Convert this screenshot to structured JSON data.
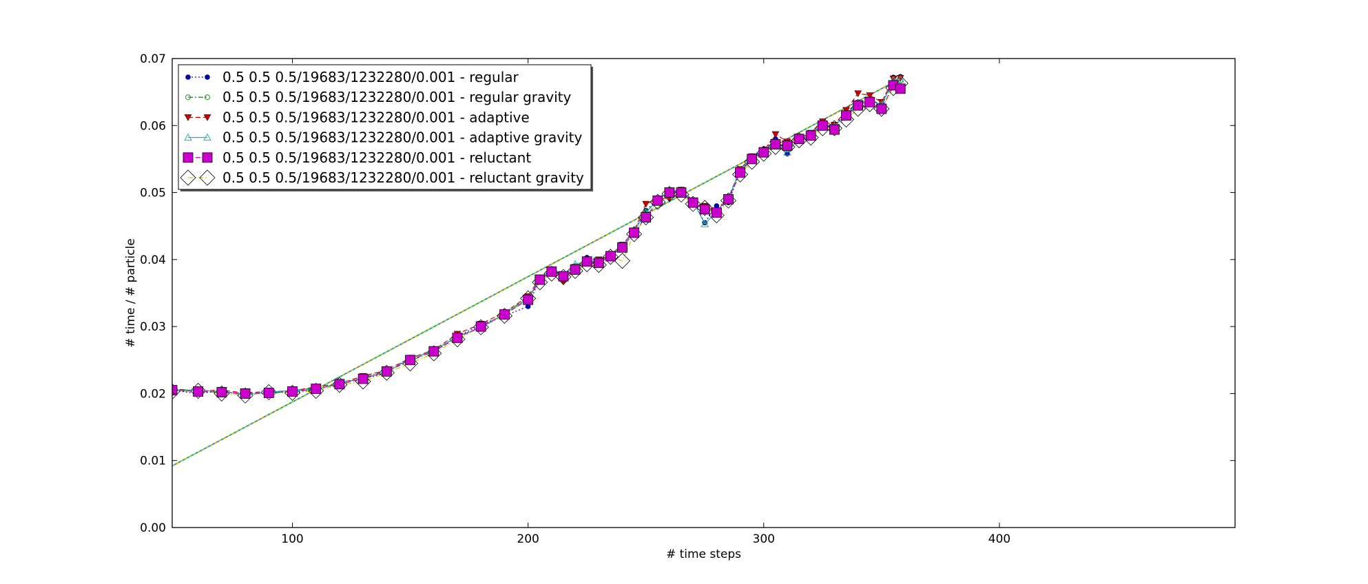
{
  "chart_data": {
    "type": "line",
    "title": "",
    "xlabel": "# time steps",
    "ylabel": "# time / # particle",
    "xlim": [
      49,
      500
    ],
    "ylim": [
      0.0,
      0.07
    ],
    "x_ticks": [
      100,
      200,
      300,
      400
    ],
    "x_tick_labels": [
      "100",
      "200",
      "300",
      "400"
    ],
    "y_ticks": [
      0.0,
      0.01,
      0.02,
      0.03,
      0.04,
      0.05,
      0.06,
      0.07
    ],
    "y_tick_labels": [
      "0.00",
      "0.01",
      "0.02",
      "0.03",
      "0.04",
      "0.05",
      "0.06",
      "0.07"
    ],
    "grid": false,
    "legend_position": "top-left",
    "base_curve": {
      "x": [
        49,
        60,
        70,
        80,
        90,
        100,
        110,
        120,
        130,
        140,
        150,
        160,
        170,
        180,
        190,
        200,
        205,
        210,
        215,
        220,
        225,
        230,
        235,
        240,
        245,
        250,
        255,
        260,
        265,
        270,
        275,
        280,
        285,
        290,
        295,
        300,
        305,
        310,
        315,
        320,
        325,
        330,
        335,
        340,
        345,
        350,
        355,
        358
      ],
      "y": [
        0.0205,
        0.0203,
        0.0202,
        0.02,
        0.0201,
        0.0203,
        0.0207,
        0.0214,
        0.0222,
        0.0233,
        0.025,
        0.0263,
        0.0283,
        0.03,
        0.0318,
        0.034,
        0.037,
        0.0382,
        0.0375,
        0.0385,
        0.0397,
        0.0395,
        0.0405,
        0.0418,
        0.044,
        0.0468,
        0.0488,
        0.05,
        0.05,
        0.0485,
        0.0475,
        0.047,
        0.049,
        0.053,
        0.055,
        0.056,
        0.0572,
        0.057,
        0.058,
        0.0585,
        0.06,
        0.0598,
        0.0615,
        0.063,
        0.0635,
        0.063,
        0.066,
        0.0665
      ]
    },
    "series": [
      {
        "name": "0.5 0.5 0.5/19683/1232280/0.001 - regular",
        "color": "#0000cc",
        "marker": "circle",
        "line_style": "dotted",
        "offsets": [
          0,
          -0.0003,
          0.0002,
          -0.0002,
          0.0001,
          0,
          -0.0002,
          0.0003,
          0,
          -0.0002,
          0.0004,
          -0.0001,
          0.0002,
          0.0003,
          -0.0002,
          -0.001,
          0.0002,
          0.0004,
          0,
          -0.0003,
          0.0006,
          0.0002,
          -0.0002,
          0.0003,
          0.0004,
          0.0005,
          0.0002,
          0.0002,
          0.0003,
          0.0002,
          -0.002,
          0.001,
          -0.0005,
          0.0003,
          0.0002,
          0.0005,
          0.0008,
          -0.0012,
          0.0002,
          0.0002,
          -0.0002,
          0.0003,
          0.0002,
          0.0005,
          0.0003,
          0.0002,
          0.0012,
          0.0008
        ]
      },
      {
        "name": "0.5 0.5 0.5/19683/1232280/0.001 - regular gravity",
        "color": "#228b22",
        "marker": "open-circle",
        "line_style": "dashdot",
        "offsets": [
          0.0001,
          0.0002,
          -0.0001,
          0.0001,
          -0.0002,
          0.0002,
          0.0001,
          -0.0001,
          0.0002,
          0.0001,
          -0.0002,
          0.0001,
          0.0003,
          -0.0002,
          0.0002,
          0.0003,
          -0.0002,
          0.0001,
          0.0002,
          0.0004,
          -0.0001,
          0.0002,
          0.0001,
          0.0003,
          0.0002,
          0.0003,
          -0.0001,
          0.0002,
          0.0001,
          0.0003,
          0.0002,
          0.0001,
          0.0003,
          0.0002,
          0.0001,
          0.0002,
          0.0003,
          0.0004,
          0.0002,
          0.0001,
          0.0003,
          0.0002,
          0.0001,
          0.0004,
          0.0002,
          0.0001,
          0.0004,
          0.0002
        ]
      },
      {
        "name": "0.5 0.5 0.5/19683/1232280/0.001 - adaptive",
        "color": "#cc0000",
        "marker": "triangle-down",
        "line_style": "dashed",
        "offsets": [
          0.0002,
          0.0001,
          0.0003,
          0.0001,
          0.0002,
          0.0001,
          0.0003,
          0.0001,
          0.0004,
          0.0002,
          0.0003,
          0.0002,
          0.0006,
          0.0004,
          0.0003,
          0.0005,
          0.0003,
          0.0002,
          -0.0008,
          0.0004,
          0.0003,
          0.0005,
          0.0002,
          0.0004,
          0.0003,
          0.0015,
          0.0002,
          -0.0008,
          0.0004,
          0.0003,
          0.0005,
          0.0003,
          0.0002,
          0.0005,
          0.0004,
          0.0002,
          0.0015,
          0.0006,
          0.0002,
          0.0004,
          0.0006,
          0.0003,
          0.0008,
          0.0018,
          0.001,
          0.0005,
          0.001,
          0.0006
        ]
      },
      {
        "name": "0.5 0.5 0.5/19683/1232280/0.001 - adaptive gravity",
        "color": "#20b2aa",
        "marker": "open-triangle",
        "line_style": "solid",
        "offsets": [
          -0.0001,
          0.0002,
          0.0001,
          -0.0002,
          0.0001,
          0.0002,
          -0.0001,
          0.0002,
          0.0001,
          -0.0001,
          0.0002,
          0.0001,
          0.0002,
          -0.0002,
          0.0001,
          0.0002,
          0.0001,
          0.0003,
          -0.0002,
          0.0008,
          0.0001,
          0.0002,
          0.0001,
          0.0002,
          0.0003,
          0.0002,
          0.0001,
          0.0002,
          0.0001,
          0.0002,
          -0.0022,
          0.0002,
          0.0001,
          0.0004,
          0.0002,
          0.0001,
          0.0003,
          -0.001,
          0.0001,
          0.0003,
          0.0002,
          0.0001,
          0.0002,
          0.0003,
          0.0002,
          0.0001,
          0.0008,
          0.0004
        ]
      },
      {
        "name": "0.5 0.5 0.5/19683/1232280/0.001 - reluctant",
        "color": "#cc00cc",
        "marker": "square",
        "line_style": "dashed",
        "offsets": [
          0,
          0,
          0,
          0,
          0,
          0,
          0,
          0,
          0,
          0,
          0,
          0,
          0,
          0,
          0,
          0,
          0,
          0,
          0,
          0,
          0,
          0,
          0,
          0,
          0,
          -0.0005,
          0,
          0,
          0,
          0,
          0,
          0,
          0,
          0,
          0,
          0,
          0,
          0,
          0,
          0,
          0,
          -0.0004,
          0,
          0,
          0,
          -0.0005,
          0,
          -0.001
        ]
      },
      {
        "name": "0.5 0.5 0.5/19683/1232280/0.001 - reluctant gravity",
        "color": "#cccc00",
        "marker": "open-diamond",
        "line_style": "dashdot",
        "offsets": [
          -0.0002,
          0.0001,
          -0.0002,
          -0.0003,
          0.0001,
          -0.0002,
          -0.0003,
          -0.0001,
          -0.0004,
          -0.0002,
          -0.0005,
          -0.0003,
          -0.0002,
          -0.0001,
          -0.0002,
          0.0002,
          -0.0004,
          -0.0003,
          -0.0001,
          -0.0002,
          -0.0004,
          -0.0003,
          -0.0001,
          -0.002,
          -0.0002,
          -0.0005,
          -0.0002,
          -0.0002,
          -0.0003,
          -0.0002,
          0.0002,
          -0.0004,
          -0.0002,
          -0.0003,
          -0.0004,
          -0.0002,
          -0.0004,
          -0.0002,
          -0.0002,
          -0.0003,
          -0.0004,
          -0.0002,
          -0.0006,
          -0.0005,
          -0.0003,
          -0.0005,
          -0.0004,
          -0.0002
        ]
      }
    ],
    "fit_line": {
      "x": [
        49,
        358
      ],
      "y": [
        0.0092,
        0.067
      ],
      "colors": [
        "#20b2aa",
        "#cccc00",
        "#cc00cc"
      ]
    }
  }
}
